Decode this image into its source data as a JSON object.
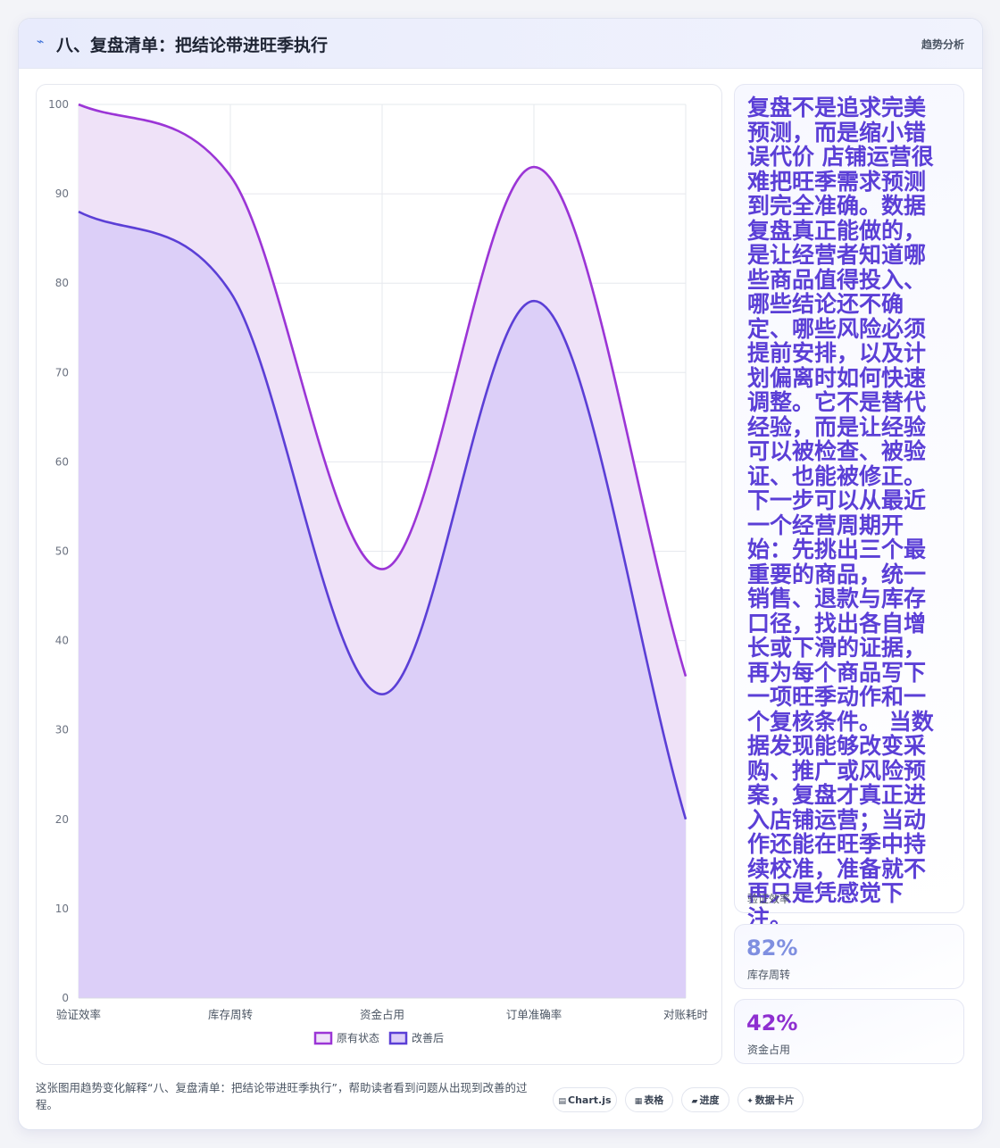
{
  "header": {
    "icon": "trend-line-icon",
    "title": "八、复盘清单：把结论带进旺季执行",
    "tag": "趋势分析"
  },
  "chart_data": {
    "type": "area",
    "categories": [
      "验证效率",
      "库存周转",
      "资金占用",
      "订单准确率",
      "对账耗时"
    ],
    "series": [
      {
        "name": "原有状态",
        "values": [
          100,
          92,
          48,
          93,
          36
        ],
        "color": "#9b35d6",
        "fill": "#efe2f8"
      },
      {
        "name": "改善后",
        "values": [
          88,
          79,
          34,
          78,
          20
        ],
        "color": "#5b3fd6",
        "fill": "#dccff8"
      }
    ],
    "ylim": [
      0,
      100
    ],
    "yticks": [
      0,
      10,
      20,
      30,
      40,
      50,
      60,
      70,
      80,
      90,
      100
    ],
    "grid": true,
    "legend": "bottom"
  },
  "side": {
    "note": "复盘不是追求完美预测，而是缩小错误代价 店铺运营很难把旺季需求预测到完全准确。数据复盘真正能做的，是让经营者知道哪些商品值得投入、哪些结论还不确定、哪些风险必须提前安排，以及计划偏离时如何快速调整。它不是替代经验，而是让经验可以被检查、被验证、也能被修正。 下一步可以从最近一个经营周期开始：先挑出三个最重要的商品，统一销售、退款与库存口径，找出各自增长或下滑的证据，再为每个商品写下一项旺季动作和一个复核条件。 当数据发现能够改变采购、推广或风险预案，复盘才真正进入店铺运营；当动作还能在旺季中持续校准，准备就不再只是凭感觉下注。",
    "note_label": "验证效率",
    "stats": [
      {
        "value": "82%",
        "label": "库存周转",
        "color": "#7f8fe0"
      },
      {
        "value": "42%",
        "label": "资金占用",
        "color": "#8e2fd0"
      }
    ]
  },
  "footer": {
    "text": "这张图用趋势变化解释“八、复盘清单：把结论带进旺季执行”，帮助读者看到问题从出现到改善的过程。",
    "pills": [
      {
        "icon": "chart-icon",
        "label": "Chart.js"
      },
      {
        "icon": "table-icon",
        "label": "表格"
      },
      {
        "icon": "progress-icon",
        "label": "进度"
      },
      {
        "icon": "sparkle-icon",
        "label": "数据卡片"
      }
    ]
  }
}
